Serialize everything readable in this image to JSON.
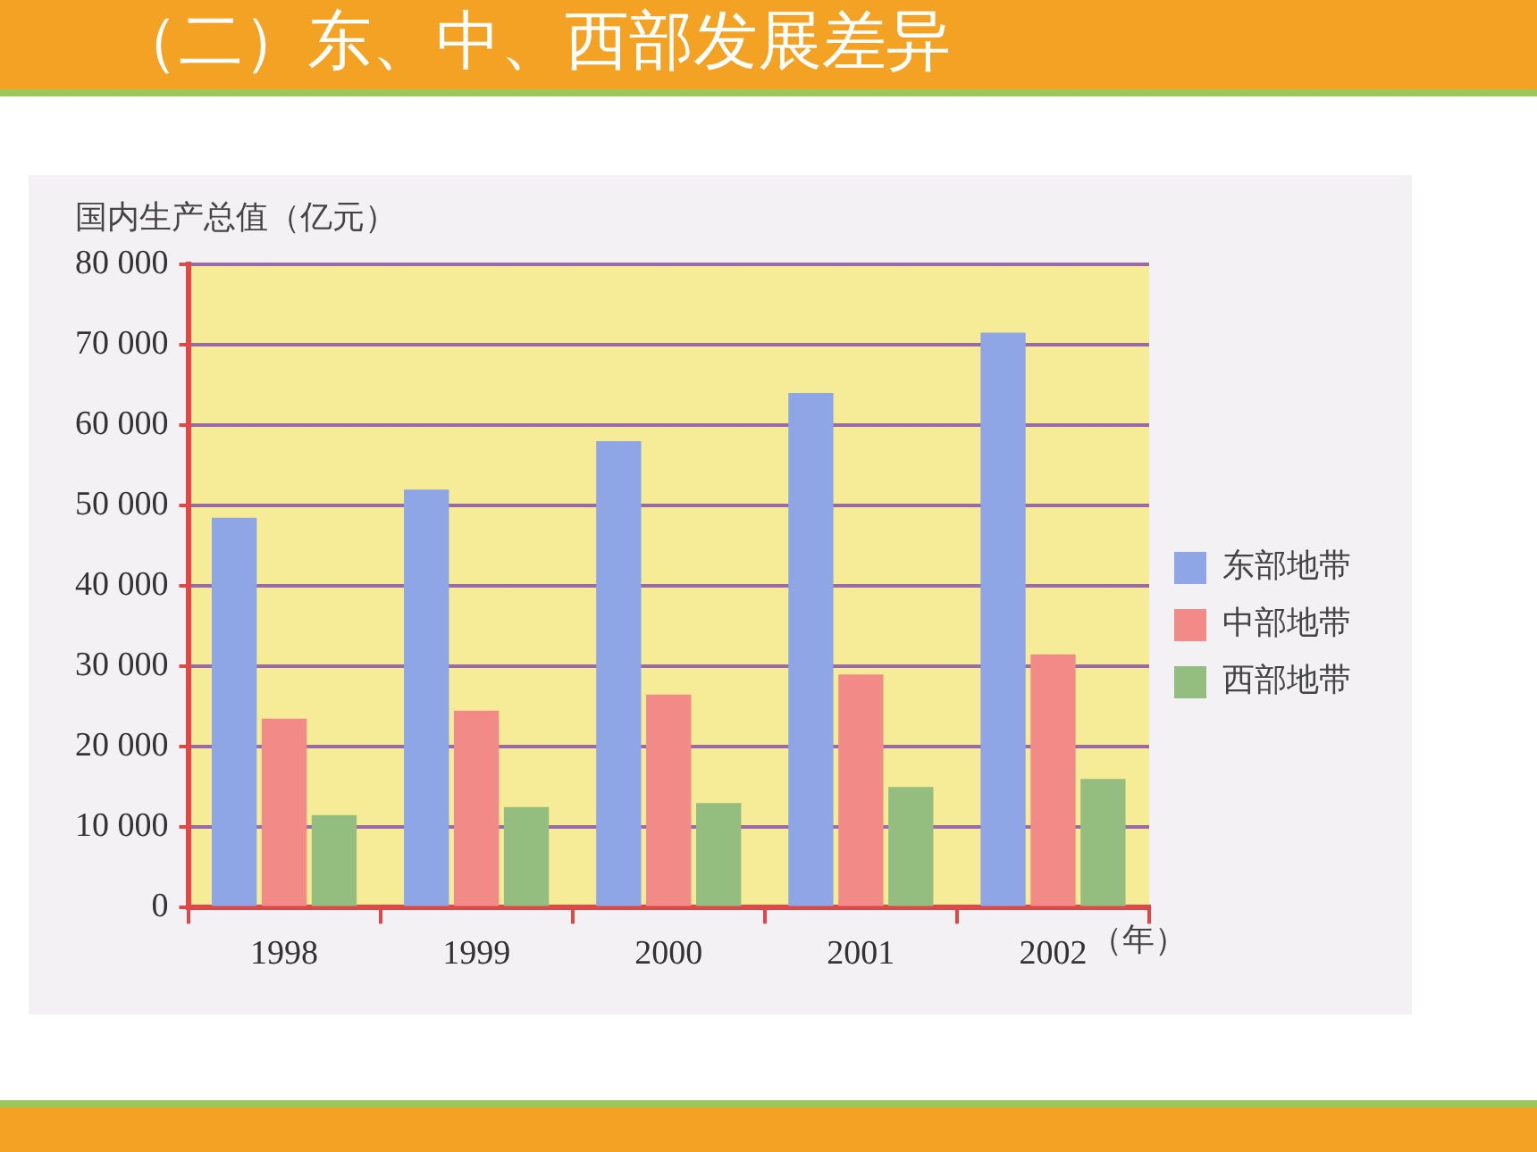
{
  "chart_data": {
    "type": "bar",
    "title": "（二）东、中、西部发展差异",
    "ylabel": "国内生产总值（亿元）",
    "xlabel": "（年）",
    "categories": [
      "1998",
      "1999",
      "2000",
      "2001",
      "2002"
    ],
    "series": [
      {
        "name": "东部地带",
        "color": "#8ea6e6",
        "values": [
          48500,
          52000,
          58000,
          64000,
          71500
        ]
      },
      {
        "name": "中部地带",
        "color": "#f28a88",
        "values": [
          23500,
          24500,
          26500,
          29000,
          31500
        ]
      },
      {
        "name": "西部地带",
        "color": "#94bd80",
        "values": [
          11500,
          12500,
          13000,
          15000,
          16000
        ]
      }
    ],
    "ylim": [
      0,
      80000
    ],
    "yticks": [
      0,
      {
        "value": 10000,
        "label": "10 000"
      },
      {
        "value": 20000,
        "label": "20 000"
      },
      {
        "value": 30000,
        "label": "30 000"
      },
      {
        "value": 40000,
        "label": "40 000"
      },
      {
        "value": 50000,
        "label": "50 000"
      },
      {
        "value": 60000,
        "label": "60 000"
      },
      {
        "value": 70000,
        "label": "70 000"
      },
      {
        "value": 80000,
        "label": "80 000"
      }
    ],
    "grid": "y",
    "legend": "right"
  }
}
